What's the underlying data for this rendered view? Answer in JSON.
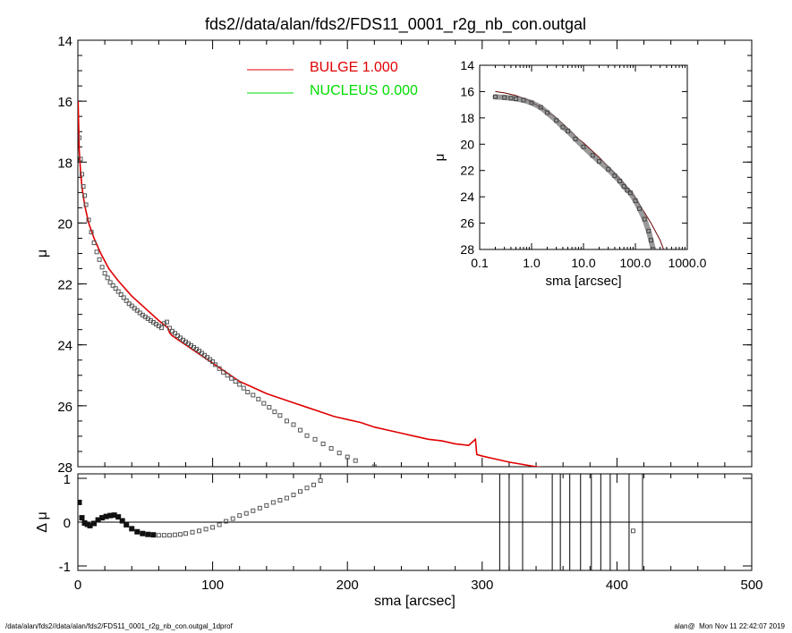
{
  "chart_data": [
    {
      "id": "main-profile",
      "type": "scatter",
      "title": "fds2//data/alan/fds2/FDS11_0001_r2g_nb_con.outgal",
      "xlabel": "",
      "ylabel": "μ",
      "xlim": [
        0,
        500
      ],
      "ylim": [
        28,
        14
      ],
      "y_inverted": true,
      "yticks": [
        14,
        16,
        18,
        20,
        22,
        24,
        26,
        28
      ],
      "legend_placement": "top-center",
      "legend": [
        {
          "name": "BULGE",
          "value": "1.000",
          "color": "#e00000"
        },
        {
          "name": "NUCLEUS",
          "value": "0.000",
          "color": "#00dd00"
        }
      ],
      "series": [
        {
          "name": "BULGE",
          "kind": "line",
          "color": "#e00000",
          "x": [
            0.2,
            1,
            2,
            3,
            5,
            8,
            12,
            17,
            23,
            30,
            40,
            50,
            60,
            67,
            68,
            70,
            80,
            90,
            100,
            110,
            120,
            130,
            140,
            150,
            160,
            170,
            180,
            190,
            200,
            210,
            220,
            230,
            240,
            250,
            260,
            270,
            280,
            290,
            295,
            296,
            300,
            310,
            320,
            340,
            350
          ],
          "y": [
            16.0,
            17.6,
            18.3,
            18.8,
            19.4,
            20.0,
            20.5,
            21.0,
            21.5,
            21.9,
            22.4,
            22.8,
            23.2,
            23.45,
            23.6,
            23.7,
            24.0,
            24.3,
            24.6,
            24.9,
            25.2,
            25.4,
            25.6,
            25.75,
            25.9,
            26.05,
            26.2,
            26.35,
            26.45,
            26.55,
            26.7,
            26.8,
            26.9,
            27.0,
            27.1,
            27.15,
            27.25,
            27.3,
            27.1,
            27.6,
            27.65,
            27.75,
            27.85,
            28.0,
            28.05
          ]
        },
        {
          "name": "data",
          "kind": "points",
          "color": "#555555",
          "x": [
            1,
            2,
            3,
            4,
            5,
            6,
            8,
            10,
            12,
            14,
            16,
            18,
            20,
            22,
            24,
            26,
            28,
            30,
            32,
            34,
            36,
            38,
            40,
            42,
            44,
            46,
            48,
            50,
            52,
            54,
            56,
            58,
            60,
            62,
            64,
            66,
            68,
            70,
            72,
            74,
            76,
            78,
            80,
            82,
            84,
            86,
            88,
            90,
            92,
            94,
            96,
            98,
            100,
            102,
            105,
            108,
            111,
            114,
            117,
            120,
            123,
            126,
            130,
            134,
            138,
            142,
            146,
            150,
            155,
            160,
            165,
            170,
            176,
            182,
            188,
            194,
            200,
            206,
            220
          ],
          "y": [
            17.2,
            17.9,
            18.4,
            18.8,
            19.1,
            19.4,
            19.9,
            20.3,
            20.65,
            20.95,
            21.2,
            21.45,
            21.65,
            21.8,
            21.95,
            22.05,
            22.15,
            22.25,
            22.35,
            22.45,
            22.55,
            22.65,
            22.72,
            22.8,
            22.87,
            22.95,
            23.02,
            23.08,
            23.14,
            23.2,
            23.26,
            23.32,
            23.38,
            23.44,
            23.3,
            23.25,
            23.45,
            23.55,
            23.62,
            23.7,
            23.77,
            23.84,
            23.9,
            23.96,
            24.02,
            24.08,
            24.14,
            24.2,
            24.27,
            24.34,
            24.41,
            24.48,
            24.55,
            24.65,
            24.78,
            24.9,
            25.0,
            25.1,
            25.2,
            25.3,
            25.42,
            25.55,
            25.65,
            25.78,
            25.92,
            26.05,
            26.2,
            26.32,
            26.5,
            26.62,
            26.8,
            26.98,
            27.1,
            27.25,
            27.4,
            27.55,
            27.68,
            27.8,
            28.0
          ]
        }
      ]
    },
    {
      "id": "inset-log-profile",
      "type": "scatter",
      "xlabel": "sma [arcsec]",
      "ylabel": "μ",
      "x_scale": "log",
      "xlim": [
        0.1,
        1000.0
      ],
      "xticks": [
        "0.1",
        "1.0",
        "10.0",
        "100.0",
        "1000.0"
      ],
      "ylim": [
        28,
        14
      ],
      "y_inverted": true,
      "yticks": [
        14,
        16,
        18,
        20,
        22,
        24,
        26,
        28
      ],
      "series": [
        {
          "name": "model",
          "kind": "line",
          "color": "#660000",
          "x": [
            0.2,
            0.3,
            0.5,
            0.8,
            1,
            2,
            3,
            5,
            8,
            10,
            20,
            30,
            50,
            70,
            100,
            150,
            200,
            300,
            350
          ],
          "y": [
            16.0,
            16.1,
            16.3,
            16.6,
            16.8,
            17.5,
            18.0,
            18.8,
            19.6,
            19.9,
            21.0,
            21.7,
            22.6,
            23.3,
            24.1,
            25.2,
            26.0,
            27.3,
            28.0
          ]
        },
        {
          "name": "data",
          "kind": "points",
          "color": "#777777",
          "x": [
            0.2,
            0.3,
            0.4,
            0.5,
            0.7,
            1,
            1.5,
            2,
            3,
            4,
            5,
            7,
            10,
            15,
            20,
            30,
            40,
            50,
            60,
            70,
            80,
            100,
            120,
            150,
            180,
            200,
            220
          ],
          "y": [
            16.4,
            16.45,
            16.5,
            16.55,
            16.65,
            16.85,
            17.2,
            17.6,
            18.2,
            18.7,
            19.0,
            19.6,
            20.2,
            20.85,
            21.3,
            21.9,
            22.4,
            22.8,
            23.2,
            23.5,
            23.7,
            24.3,
            24.9,
            25.7,
            26.6,
            27.3,
            28.0
          ]
        }
      ]
    },
    {
      "id": "residuals",
      "type": "scatter",
      "xlabel": "sma [arcsec]",
      "ylabel": "Δ μ",
      "xlim": [
        0,
        500
      ],
      "xticks": [
        0,
        100,
        200,
        300,
        400,
        500
      ],
      "ylim": [
        -1,
        1
      ],
      "yticks": [
        -1,
        0,
        1
      ],
      "zero_line": true,
      "vertical_lines_x": [
        313,
        320,
        330,
        352,
        358,
        365,
        373,
        381,
        388,
        395,
        409,
        419
      ],
      "series": [
        {
          "name": "residual",
          "kind": "points",
          "color": "#222222",
          "x": [
            1,
            3,
            5,
            7,
            9,
            12,
            15,
            18,
            21,
            24,
            27,
            30,
            33,
            36,
            40,
            44,
            48,
            52,
            56,
            60,
            64,
            68,
            72,
            76,
            80,
            85,
            90,
            95,
            100,
            105,
            110,
            115,
            120,
            125,
            130,
            135,
            140,
            145,
            150,
            155,
            160,
            165,
            170,
            175,
            180,
            412
          ],
          "y": [
            0.45,
            0.1,
            -0.02,
            -0.05,
            -0.08,
            -0.03,
            0.05,
            0.1,
            0.13,
            0.15,
            0.16,
            0.12,
            0.03,
            -0.06,
            -0.15,
            -0.22,
            -0.26,
            -0.28,
            -0.29,
            -0.3,
            -0.3,
            -0.3,
            -0.29,
            -0.28,
            -0.26,
            -0.23,
            -0.2,
            -0.16,
            -0.12,
            -0.06,
            0.02,
            0.08,
            0.15,
            0.2,
            0.26,
            0.32,
            0.38,
            0.45,
            0.5,
            0.55,
            0.62,
            0.7,
            0.78,
            0.85,
            0.95,
            -0.2
          ]
        }
      ]
    }
  ],
  "footer": {
    "left": "/data/alan/fds2//data/alan/fds2/FDS11_0001_r2g_nb_con.outgal_1dprof",
    "right": "alan@  Mon Nov 11 22:42:07 2019"
  }
}
